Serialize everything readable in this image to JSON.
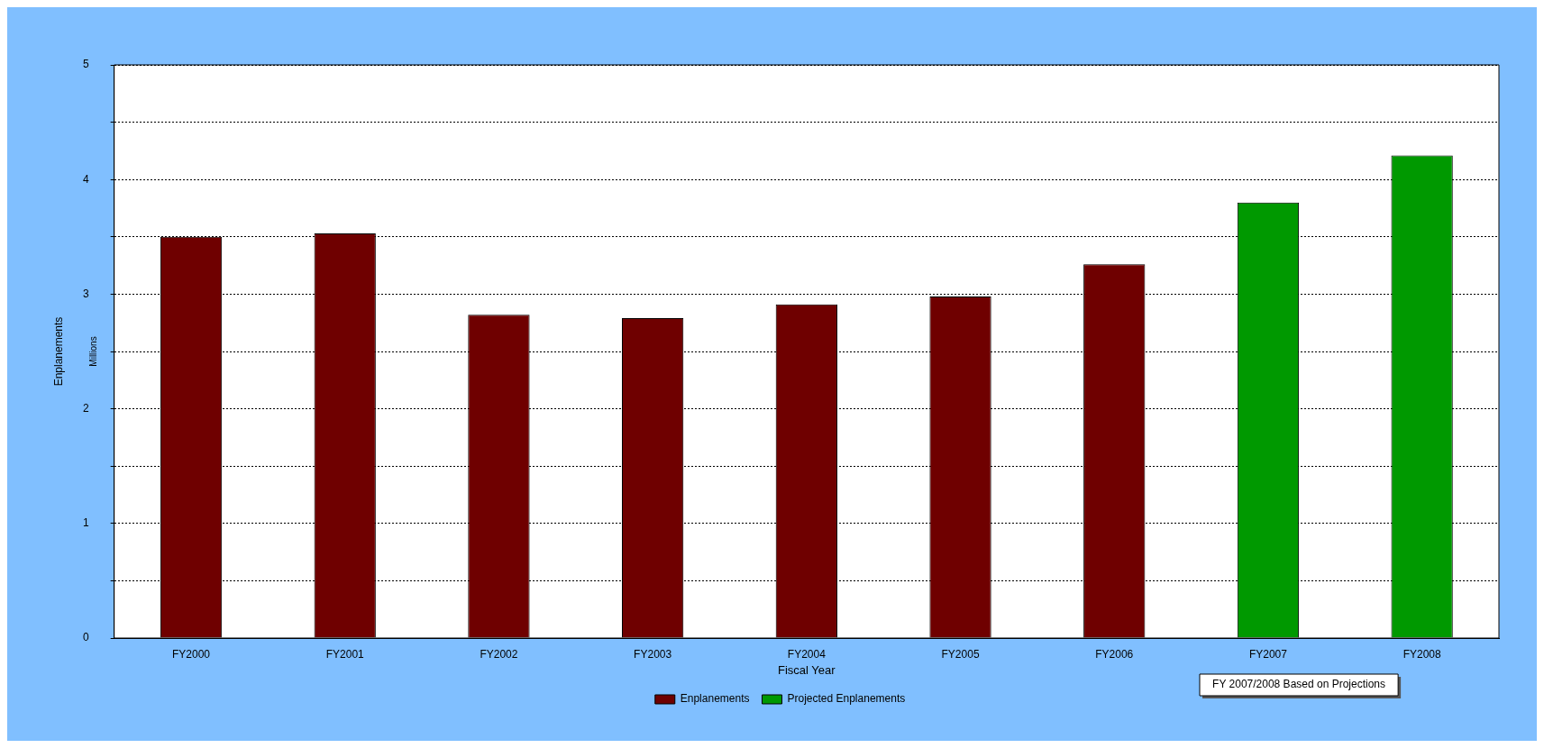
{
  "chart_data": {
    "type": "bar",
    "xlabel": "Fiscal Year",
    "ylabel": "Enplanements",
    "categories": [
      "FY2000",
      "FY2001",
      "FY2002",
      "FY2003",
      "FY2004",
      "FY2005",
      "FY2006",
      "FY2007",
      "FY2008"
    ],
    "series": [
      {
        "name": "Enplanements",
        "color": "#6f0000",
        "values": [
          3.5,
          3.53,
          2.82,
          2.79,
          2.91,
          2.98,
          3.26,
          null,
          null
        ]
      },
      {
        "name": "Projected Enplanements",
        "color": "#009900",
        "values": [
          null,
          null,
          null,
          null,
          null,
          null,
          null,
          3.8,
          4.21
        ]
      }
    ],
    "ylim": [
      0,
      5
    ],
    "yticks": [
      0,
      {
        "value": 0.5,
        "label": null
      },
      1,
      {
        "value": 1.5,
        "label": null
      },
      2,
      {
        "value": 2.5,
        "label": null
      },
      3,
      {
        "value": 3.5,
        "label": null
      },
      4,
      {
        "value": 4.5,
        "label": null
      },
      5
    ],
    "grid": "y",
    "legend": "bottom",
    "annotations": [
      "Millions",
      "FY 2007/2008 Based on Projections"
    ]
  }
}
